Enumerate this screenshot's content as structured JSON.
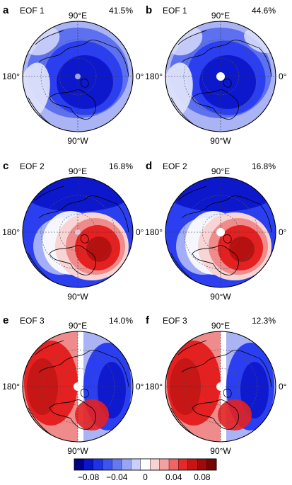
{
  "colors": {
    "deep_blue": "#0a14c8",
    "blue": "#2b3ff0",
    "mid_blue": "#5468f0",
    "light_blue": "#aab4f5",
    "pale_blue": "#dde1fb",
    "white": "#ffffff",
    "pale_red": "#f8d4d4",
    "light_red": "#f08b8b",
    "red": "#e52020",
    "deep_red": "#b01010",
    "dark_red": "#7a0a0a"
  },
  "panels": [
    {
      "letter": "a",
      "title": "EOF 1",
      "variance": "41.5%",
      "label_top": "90°E",
      "label_left": "180°",
      "label_right": "0°",
      "label_bottom": "90°W",
      "pattern": "eof1"
    },
    {
      "letter": "b",
      "title": "EOF 1",
      "variance": "44.6%",
      "label_top": "90°E",
      "label_left": "180°",
      "label_right": "0°",
      "label_bottom": "90°W",
      "pattern": "eof1"
    },
    {
      "letter": "c",
      "title": "EOF 2",
      "variance": "16.8%",
      "label_top": "90°E",
      "label_left": "180°",
      "label_right": "0°",
      "label_bottom": "90°W",
      "pattern": "eof2"
    },
    {
      "letter": "d",
      "title": "EOF 2",
      "variance": "16.8%",
      "label_top": "90°E",
      "label_left": "180°",
      "label_right": "0°",
      "label_bottom": "90°W",
      "pattern": "eof2"
    },
    {
      "letter": "e",
      "title": "EOF 3",
      "variance": "14.0%",
      "label_top": "90°E",
      "label_left": "180°",
      "label_right": "0°",
      "label_bottom": "90°W",
      "pattern": "eof3"
    },
    {
      "letter": "f",
      "title": "EOF 3",
      "variance": "12.3%",
      "label_top": "90°E",
      "label_left": "180°",
      "label_right": "0°",
      "label_bottom": "90°W",
      "pattern": "eof3"
    }
  ],
  "colorbar": {
    "ticks": [
      {
        "value": -0.08,
        "label": "−0.08"
      },
      {
        "value": -0.04,
        "label": "−0.04"
      },
      {
        "value": 0,
        "label": "0"
      },
      {
        "value": 0.04,
        "label": "0.04"
      },
      {
        "value": 0.08,
        "label": "0.08"
      }
    ],
    "min": -0.1,
    "max": 0.1,
    "levels": [
      "#00008b",
      "#0a14c8",
      "#1e32e6",
      "#3c55f0",
      "#6478f2",
      "#96a5f5",
      "#c8d0fa",
      "#ffffff",
      "#fad2d2",
      "#f5a0a0",
      "#f06464",
      "#e62828",
      "#c81414",
      "#a00a0a",
      "#780505"
    ]
  }
}
